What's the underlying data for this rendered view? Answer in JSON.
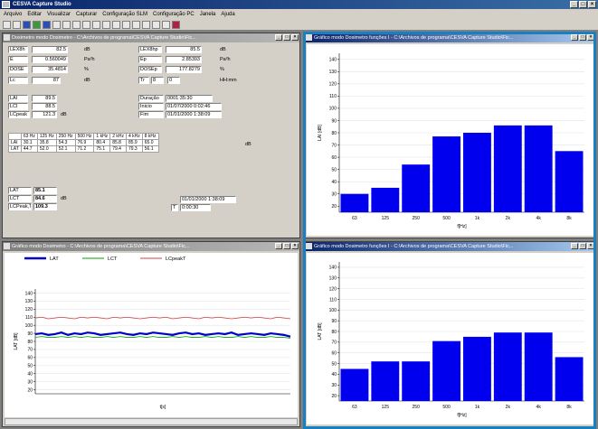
{
  "app": {
    "title": "CESVA Capture Studio",
    "controls": [
      "_",
      "□",
      "×"
    ]
  },
  "menu": [
    "Arquivo",
    "Editar",
    "Visualizar",
    "Capturar",
    "Configuração SLM",
    "Configuração PC",
    "Janela",
    "Ajuda"
  ],
  "win_tl": {
    "title": "Dosimetro modo Dosimetro - C:\\Archivos de programa\\CESVA Capture Studio\\Fic...",
    "rows": [
      {
        "label": "LEX8h",
        "value": "82.5",
        "unit": "dB"
      },
      {
        "label": "E",
        "value": "0.560049",
        "unit": "Pa²h"
      },
      {
        "label": "DOSE",
        "value": "35.4814",
        "unit": "%"
      },
      {
        "label": "Lc",
        "value": "87",
        "unit": "dB"
      }
    ],
    "rows_r": [
      {
        "label": "LEX8hp",
        "value": "85.5",
        "unit": "dB"
      },
      {
        "label": "Ep",
        "value": "2.85393",
        "unit": "Pa²h"
      },
      {
        "label": "DOSEp",
        "value": "177.8279",
        "unit": "%"
      }
    ],
    "time": {
      "label": "Tr",
      "h": "8",
      "m": "0",
      "unit": "HH:mm"
    },
    "levels": [
      {
        "label": "LAI",
        "value": "89.5"
      },
      {
        "label": "LCI",
        "value": "88.5"
      },
      {
        "label": "LCpeak",
        "value": "121.3",
        "unit": "dB"
      }
    ],
    "duration": [
      {
        "label": "Duração",
        "value": "0001:35:30"
      },
      {
        "label": "Inicio",
        "value": "01/07/2000 0:02:46"
      },
      {
        "label": "Fim",
        "value": "01/01/2000 1:38:09"
      }
    ],
    "oct_headers": [
      "63 Hz",
      "125 Hz",
      "250 Hz",
      "500 Hz",
      "1 kHz",
      "2 kHz",
      "4 kHz",
      "8 kHz"
    ],
    "oct_rows": [
      {
        "label": "LAI",
        "values": [
          "30.1",
          "35.8",
          "54.3",
          "76.9",
          "80.4",
          "85.8",
          "85.9",
          "65.0"
        ]
      },
      {
        "label": "LAT",
        "values": [
          "44.7",
          "52.0",
          "52.1",
          "71.2",
          "75.1",
          "79.4",
          "79.3",
          "56.1"
        ]
      }
    ],
    "oct_unit": "dB",
    "summary": [
      {
        "label": "LAT",
        "value": "85.1"
      },
      {
        "label": "LCT",
        "value": "84.6"
      },
      {
        "label": "LCPeak,T",
        "value": "109.3"
      }
    ],
    "summary_unit": "dB",
    "times2": {
      "date": "01/01/2000 1:38:09",
      "t_label": "T",
      "t": "0:00:30"
    }
  },
  "win_tr": {
    "title": "Gráfico modo Dosimetro funções I - C:\\Archivos de programa\\CESVA Capture Studio\\Fic..."
  },
  "win_bl": {
    "title": "Gráfico modo Dosimetro - C:\\Archivos de programa\\CESVA Capture Studio\\Fic..."
  },
  "win_br": {
    "title": "Gráfico modo Dosimetro funções I - C:\\Archivos de programa\\CESVA Capture Studio\\Fic..."
  },
  "chart_data": [
    {
      "type": "bar",
      "categories": [
        "63",
        "125",
        "250",
        "500",
        "1k",
        "2k",
        "4k",
        "8k"
      ],
      "values": [
        30,
        35,
        54,
        77,
        80,
        86,
        86,
        65
      ],
      "xlabel": "f[Hz]",
      "ylabel": "LAI [dB]",
      "ylim": [
        15,
        145
      ],
      "yticks": [
        20,
        30,
        40,
        50,
        60,
        70,
        80,
        90,
        100,
        110,
        120,
        130,
        140
      ],
      "color": "#0000ee",
      "grid": true
    },
    {
      "type": "line",
      "series": [
        {
          "name": "LAT",
          "color": "#0000cc",
          "values": [
            89,
            90,
            88,
            89,
            91,
            88,
            90,
            89,
            91,
            90,
            88,
            89,
            90,
            91,
            89,
            88,
            90,
            89,
            91,
            90,
            89,
            88,
            90,
            91,
            89,
            90,
            88,
            89,
            90,
            89,
            91,
            88,
            89,
            90,
            89,
            88,
            90,
            89,
            88,
            86
          ]
        },
        {
          "name": "LCT",
          "color": "#00a000",
          "values": [
            85,
            86,
            85,
            85,
            86,
            85,
            86,
            85,
            86,
            85,
            85,
            86,
            85,
            86,
            85,
            85,
            86,
            85,
            86,
            85,
            85,
            86,
            85,
            86,
            85,
            85,
            86,
            85,
            86,
            85,
            85,
            86,
            85,
            86,
            85,
            85,
            86,
            85,
            85,
            84
          ]
        },
        {
          "name": "LCpeakT",
          "color": "#d04040",
          "values": [
            109,
            110,
            108,
            109,
            110,
            109,
            108,
            110,
            109,
            110,
            109,
            108,
            110,
            109,
            110,
            109,
            108,
            109,
            110,
            109,
            110,
            108,
            109,
            110,
            109,
            108,
            110,
            109,
            110,
            109,
            108,
            109,
            110,
            109,
            110,
            109,
            108,
            110,
            109,
            108
          ]
        }
      ],
      "xlabel": "t[s]",
      "ylabel": "LAT [dB]",
      "ylim": [
        15,
        145
      ],
      "yticks": [
        20,
        30,
        40,
        50,
        60,
        70,
        80,
        90,
        100,
        110,
        120,
        130,
        140
      ],
      "legend": "top",
      "grid": true
    },
    {
      "type": "bar",
      "categories": [
        "63",
        "125",
        "250",
        "500",
        "1k",
        "2k",
        "4k",
        "8k"
      ],
      "values": [
        45,
        52,
        52,
        71,
        75,
        79,
        79,
        56
      ],
      "xlabel": "f[Hz]",
      "ylabel": "LAT [dB]",
      "ylim": [
        15,
        145
      ],
      "yticks": [
        20,
        30,
        40,
        50,
        60,
        70,
        80,
        90,
        100,
        110,
        120,
        130,
        140
      ],
      "color": "#0000ee",
      "grid": true
    }
  ]
}
